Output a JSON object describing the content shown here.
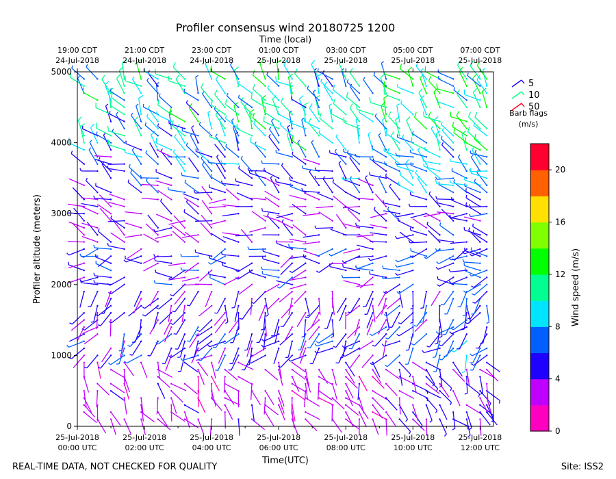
{
  "chart_data": {
    "type": "wind-barb-profile",
    "title": "Profiler consensus wind 20180725 1200",
    "top_axis_label": "Time (local)",
    "top_ticks": [
      {
        "h": 0,
        "line1": "19:00 CDT",
        "line2": "24-Jul-2018"
      },
      {
        "h": 2,
        "line1": "21:00 CDT",
        "line2": "24-Jul-2018"
      },
      {
        "h": 4,
        "line1": "23:00 CDT",
        "line2": "24-Jul-2018"
      },
      {
        "h": 6,
        "line1": "01:00 CDT",
        "line2": "25-Jul-2018"
      },
      {
        "h": 8,
        "line1": "03:00 CDT",
        "line2": "25-Jul-2018"
      },
      {
        "h": 10,
        "line1": "05:00 CDT",
        "line2": "25-Jul-2018"
      },
      {
        "h": 12,
        "line1": "07:00 CDT",
        "line2": "25-Jul-2018"
      }
    ],
    "bottom_ticks": [
      {
        "h": 0,
        "line1": "25-Jul-2018",
        "line2": "00:00 UTC"
      },
      {
        "h": 2,
        "line1": "25-Jul-2018",
        "line2": "02:00 UTC"
      },
      {
        "h": 4,
        "line1": "25-Jul-2018",
        "line2": "04:00 UTC"
      },
      {
        "h": 6,
        "line1": "25-Jul-2018",
        "line2": "06:00 UTC"
      },
      {
        "h": 8,
        "line1": "25-Jul-2018",
        "line2": "08:00 UTC"
      },
      {
        "h": 10,
        "line1": "25-Jul-2018",
        "line2": "10:00 UTC"
      },
      {
        "h": 12,
        "line1": "25-Jul-2018",
        "line2": "12:00 UTC"
      }
    ],
    "xlabel": "Time(UTC)",
    "ylabel": "Profiler altitude (meters)",
    "xlim_hours": [
      0,
      12.4
    ],
    "ylim": [
      0,
      5000
    ],
    "yticks": [
      0,
      1000,
      2000,
      3000,
      4000,
      5000
    ],
    "legend": {
      "entries": [
        {
          "label": "5",
          "color": "#1a00ff"
        },
        {
          "label": "10",
          "color": "#00ff80"
        },
        {
          "label": "50",
          "color": "#ff0020"
        }
      ],
      "title_line1": "Barb flags",
      "title_line2": "(m/s)"
    },
    "colorbar": {
      "label": "Wind speed (m/s)",
      "min": 0,
      "max": 22,
      "step": 2,
      "ticks": [
        0,
        4,
        8,
        12,
        16,
        20
      ],
      "colors": [
        "#ff00c0",
        "#c000ff",
        "#2000ff",
        "#0060ff",
        "#00e5ff",
        "#00ff90",
        "#00ff00",
        "#80ff00",
        "#ffe000",
        "#ff6000",
        "#ff0030"
      ]
    },
    "columns_hours": [
      0.2,
      0.6,
      1.0,
      1.4,
      1.9,
      2.4,
      2.8,
      3.2,
      3.6,
      4.0,
      4.4,
      4.8,
      5.2,
      5.6,
      6.0,
      6.4,
      6.8,
      7.2,
      7.6,
      8.0,
      8.4,
      8.8,
      9.2,
      9.6,
      10.0,
      10.4,
      10.8,
      11.2,
      11.6,
      12.0,
      12.2
    ],
    "layers": [
      {
        "from": 0,
        "to": 1000,
        "speed": 3,
        "dir": 150
      },
      {
        "from": 1000,
        "to": 1500,
        "speed": 5,
        "dir": 220
      },
      {
        "from": 1500,
        "to": 2000,
        "speed": 4,
        "dir": 200
      },
      {
        "from": 2000,
        "to": 2600,
        "speed": 5,
        "dir": 260
      },
      {
        "from": 2600,
        "to": 3300,
        "speed": 3.5,
        "dir": 290
      },
      {
        "from": 3300,
        "to": 3900,
        "speed": 6,
        "dir": 300
      },
      {
        "from": 3900,
        "to": 5000,
        "speed": 9,
        "dir": 320
      }
    ],
    "footer_left": "REAL-TIME DATA, NOT CHECKED FOR QUALITY",
    "footer_right": "Site: ISS2"
  }
}
